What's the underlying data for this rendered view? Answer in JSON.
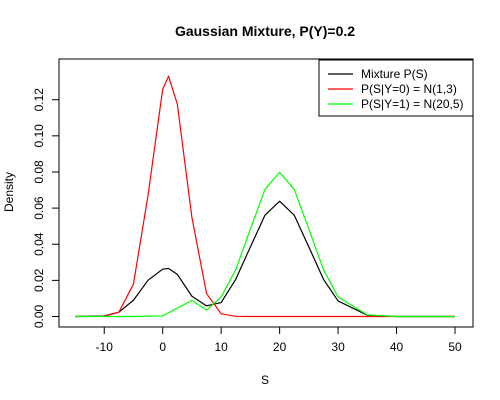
{
  "chart_data": {
    "type": "line",
    "title": "Gaussian Mixture, P(Y)=0.2",
    "xlabel": "S",
    "ylabel": "Density",
    "xlim": [
      -15,
      50
    ],
    "ylim": [
      0,
      0.135
    ],
    "x_ticks": [
      -10,
      0,
      10,
      20,
      30,
      40,
      50
    ],
    "y_ticks": [
      0.0,
      0.02,
      0.04,
      0.06,
      0.08,
      0.1,
      0.12
    ],
    "x_tick_labels": [
      "-10",
      "0",
      "10",
      "20",
      "30",
      "40",
      "50"
    ],
    "y_tick_labels": [
      "0.00",
      "0.02",
      "0.04",
      "0.06",
      "0.08",
      "0.10",
      "0.12"
    ],
    "grid": false,
    "legend_position": "top-right",
    "series": [
      {
        "name": "Mixture P(S)",
        "color": "#000000",
        "x": [
          -15,
          -10,
          -7.5,
          -5,
          -2.5,
          0,
          1,
          2.5,
          5,
          7.5,
          10,
          12.5,
          15,
          17.5,
          20,
          22.5,
          25,
          27.5,
          30,
          35,
          40,
          45,
          50
        ],
        "y": [
          0.0,
          0.0003,
          0.0024,
          0.009,
          0.0201,
          0.0262,
          0.0266,
          0.0233,
          0.0112,
          0.0059,
          0.0077,
          0.0206,
          0.0385,
          0.0561,
          0.0638,
          0.0561,
          0.0385,
          0.0206,
          0.0086,
          0.0007,
          0.0,
          0.0,
          0.0
        ]
      },
      {
        "name": "P(S|Y=0) = N(1,3)",
        "color": "#ff0000",
        "x": [
          -15,
          -10,
          -7.5,
          -5,
          -2.5,
          0,
          1,
          2.5,
          5,
          7.5,
          10,
          12.5,
          15,
          20,
          30,
          40,
          50
        ],
        "y": [
          0.0,
          0.0001,
          0.0024,
          0.018,
          0.0673,
          0.1258,
          0.133,
          0.1176,
          0.0548,
          0.0127,
          0.0015,
          0.0001,
          0.0,
          0.0,
          0.0,
          0.0,
          0.0
        ]
      },
      {
        "name": "P(S|Y=1) = N(20,5)",
        "color": "#00ff00",
        "x": [
          -15,
          -5,
          0,
          5,
          7.5,
          10,
          12.5,
          15,
          17.5,
          20,
          22.5,
          25,
          27.5,
          30,
          35,
          40,
          45,
          50
        ],
        "y": [
          0.0,
          0.0,
          0.0003,
          0.0089,
          0.0035,
          0.0108,
          0.0259,
          0.0484,
          0.0704,
          0.0798,
          0.0704,
          0.0484,
          0.0259,
          0.0108,
          0.0009,
          0.0,
          0.0,
          0.0
        ]
      }
    ]
  }
}
